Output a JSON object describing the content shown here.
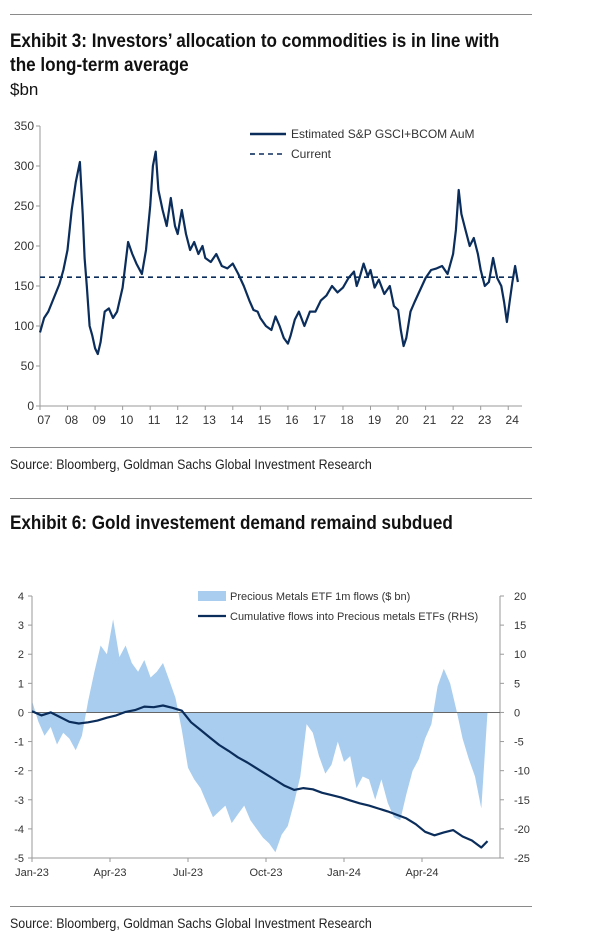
{
  "exhibit3": {
    "title": "Exhibit 3: Investors’ allocation to commodities is in line with the long-term average",
    "unit": "$bn",
    "source": "Source: Bloomberg, Goldman Sachs Global Investment Research"
  },
  "exhibit6": {
    "title": "Exhibit 6: Gold investement demand remaind subdued",
    "source": "Source: Bloomberg, Goldman Sachs Global Investment Research"
  },
  "colors": {
    "navy": "#0b2d5b",
    "lightblue": "#a9cdee",
    "axis": "#9a9a9a"
  },
  "chart_data": [
    {
      "type": "line",
      "title": "Exhibit 3: Investors’ allocation to commodities is in line with the long-term average",
      "ylabel": "$bn",
      "xlim": [
        2007,
        2024.5
      ],
      "ylim": [
        0,
        350
      ],
      "y_ticks": [
        0,
        50,
        100,
        150,
        200,
        250,
        300,
        350
      ],
      "x_tick_labels": [
        "07",
        "08",
        "09",
        "10",
        "11",
        "12",
        "13",
        "14",
        "15",
        "16",
        "17",
        "18",
        "19",
        "20",
        "21",
        "22",
        "23",
        "24"
      ],
      "legend_position": "top-right",
      "grid": false,
      "series": [
        {
          "name": "Estimated S&P GSCI+BCOM AuM",
          "style": "solid",
          "x": [
            2007.0,
            2007.15,
            2007.3,
            2007.5,
            2007.7,
            2007.85,
            2008.0,
            2008.15,
            2008.3,
            2008.45,
            2008.55,
            2008.62,
            2008.7,
            2008.8,
            2008.9,
            2009.0,
            2009.1,
            2009.2,
            2009.35,
            2009.5,
            2009.65,
            2009.8,
            2010.0,
            2010.2,
            2010.35,
            2010.5,
            2010.7,
            2010.85,
            2011.0,
            2011.1,
            2011.2,
            2011.3,
            2011.45,
            2011.6,
            2011.75,
            2011.9,
            2012.0,
            2012.15,
            2012.3,
            2012.45,
            2012.6,
            2012.75,
            2012.9,
            2013.0,
            2013.2,
            2013.4,
            2013.6,
            2013.8,
            2014.0,
            2014.2,
            2014.4,
            2014.6,
            2014.75,
            2014.9,
            2015.0,
            2015.2,
            2015.4,
            2015.55,
            2015.7,
            2015.85,
            2016.0,
            2016.1,
            2016.25,
            2016.4,
            2016.6,
            2016.8,
            2017.0,
            2017.2,
            2017.4,
            2017.6,
            2017.8,
            2018.0,
            2018.2,
            2018.4,
            2018.5,
            2018.6,
            2018.75,
            2018.9,
            2019.0,
            2019.15,
            2019.3,
            2019.5,
            2019.7,
            2019.85,
            2020.0,
            2020.1,
            2020.2,
            2020.3,
            2020.45,
            2020.6,
            2020.8,
            2021.0,
            2021.2,
            2021.4,
            2021.6,
            2021.8,
            2022.0,
            2022.1,
            2022.2,
            2022.3,
            2022.45,
            2022.6,
            2022.75,
            2022.9,
            2023.0,
            2023.15,
            2023.3,
            2023.45,
            2023.6,
            2023.75,
            2023.85,
            2023.95,
            2024.05,
            2024.15,
            2024.25,
            2024.35
          ],
          "y": [
            92,
            110,
            118,
            135,
            152,
            170,
            195,
            245,
            280,
            305,
            240,
            185,
            150,
            100,
            88,
            72,
            65,
            80,
            118,
            122,
            110,
            118,
            148,
            205,
            190,
            178,
            165,
            195,
            250,
            300,
            318,
            270,
            245,
            225,
            260,
            225,
            215,
            245,
            215,
            195,
            205,
            190,
            200,
            185,
            180,
            190,
            175,
            172,
            178,
            165,
            150,
            132,
            120,
            118,
            110,
            100,
            95,
            112,
            100,
            85,
            78,
            88,
            108,
            118,
            100,
            118,
            118,
            132,
            138,
            150,
            142,
            148,
            160,
            168,
            150,
            160,
            178,
            162,
            170,
            148,
            158,
            140,
            150,
            125,
            120,
            95,
            75,
            85,
            118,
            130,
            145,
            160,
            170,
            172,
            175,
            165,
            190,
            220,
            270,
            240,
            220,
            200,
            210,
            190,
            170,
            150,
            155,
            185,
            160,
            150,
            130,
            105,
            130,
            155,
            175,
            155
          ]
        },
        {
          "name": "Current",
          "style": "dashed",
          "value": 161
        }
      ]
    },
    {
      "type": "area",
      "title": "Exhibit 6: Gold investement demand remaind subdued",
      "x_tick_labels": [
        "Jan-23",
        "Apr-23",
        "Jul-23",
        "Oct-23",
        "Jan-24",
        "Apr-24"
      ],
      "xlim": [
        2023.0,
        2024.5
      ],
      "ylim": [
        -5,
        4
      ],
      "y_ticks": [
        -5,
        -4,
        -3,
        -2,
        -1,
        0,
        1,
        2,
        3,
        4
      ],
      "y2lim": [
        -25,
        20
      ],
      "y2_ticks": [
        -25,
        -20,
        -15,
        -10,
        -5,
        0,
        5,
        10,
        15,
        20
      ],
      "legend_position": "top-right",
      "grid": false,
      "series": [
        {
          "name": "Precious Metals ETF 1m flows ($ bn)",
          "type": "area",
          "axis": "left",
          "x": [
            2023.0,
            2023.02,
            2023.04,
            2023.06,
            2023.08,
            2023.1,
            2023.12,
            2023.14,
            2023.16,
            2023.18,
            2023.2,
            2023.22,
            2023.24,
            2023.26,
            2023.28,
            2023.3,
            2023.32,
            2023.34,
            2023.36,
            2023.38,
            2023.4,
            2023.42,
            2023.44,
            2023.46,
            2023.48,
            2023.5,
            2023.52,
            2023.54,
            2023.56,
            2023.58,
            2023.6,
            2023.62,
            2023.64,
            2023.66,
            2023.68,
            2023.7,
            2023.72,
            2023.74,
            2023.76,
            2023.78,
            2023.8,
            2023.82,
            2023.84,
            2023.86,
            2023.88,
            2023.9,
            2023.92,
            2023.94,
            2023.96,
            2023.98,
            2024.0,
            2024.02,
            2024.04,
            2024.06,
            2024.08,
            2024.1,
            2024.12,
            2024.14,
            2024.16,
            2024.18,
            2024.2,
            2024.22,
            2024.24,
            2024.26,
            2024.28,
            2024.3,
            2024.32,
            2024.34,
            2024.36,
            2024.38,
            2024.4,
            2024.42,
            2024.44,
            2024.46
          ],
          "y": [
            0.4,
            -0.3,
            -0.8,
            -0.5,
            -1.1,
            -0.7,
            -0.9,
            -1.3,
            -0.8,
            0.4,
            1.4,
            2.3,
            2.0,
            3.2,
            1.9,
            2.3,
            1.7,
            1.4,
            1.8,
            1.2,
            1.4,
            1.7,
            1.1,
            0.5,
            -0.6,
            -1.9,
            -2.3,
            -2.6,
            -3.1,
            -3.6,
            -3.4,
            -3.2,
            -3.8,
            -3.5,
            -3.2,
            -3.7,
            -4.0,
            -4.3,
            -4.5,
            -4.8,
            -4.2,
            -3.9,
            -3.1,
            -2.2,
            -0.4,
            -0.7,
            -1.5,
            -2.1,
            -1.8,
            -1.0,
            -1.7,
            -1.5,
            -2.6,
            -2.2,
            -2.3,
            -3.0,
            -2.3,
            -3.1,
            -3.6,
            -3.7,
            -2.8,
            -2.0,
            -1.6,
            -0.9,
            -0.4,
            0.9,
            1.5,
            1.0,
            0.1,
            -0.9,
            -1.6,
            -2.2,
            -3.3,
            0.0
          ]
        },
        {
          "name": "Cumulative flows into Precious metals ETFs (RHS)",
          "type": "line",
          "axis": "right",
          "x": [
            2023.0,
            2023.03,
            2023.06,
            2023.09,
            2023.12,
            2023.15,
            2023.18,
            2023.21,
            2023.24,
            2023.27,
            2023.3,
            2023.33,
            2023.36,
            2023.39,
            2023.42,
            2023.45,
            2023.48,
            2023.51,
            2023.54,
            2023.57,
            2023.6,
            2023.63,
            2023.66,
            2023.69,
            2023.72,
            2023.75,
            2023.78,
            2023.81,
            2023.84,
            2023.87,
            2023.9,
            2023.93,
            2023.96,
            2023.99,
            2024.02,
            2024.05,
            2024.08,
            2024.11,
            2024.14,
            2024.17,
            2024.2,
            2024.23,
            2024.26,
            2024.29,
            2024.32,
            2024.35,
            2024.38,
            2024.41,
            2024.44,
            2024.46
          ],
          "y": [
            0.2,
            -0.5,
            0.0,
            -0.8,
            -1.6,
            -1.9,
            -1.7,
            -1.4,
            -0.9,
            -0.5,
            0.1,
            0.4,
            1.0,
            0.9,
            1.2,
            0.8,
            0.3,
            -1.7,
            -3.0,
            -4.3,
            -5.6,
            -6.6,
            -7.7,
            -8.6,
            -9.6,
            -10.6,
            -11.6,
            -12.6,
            -13.3,
            -13.0,
            -13.2,
            -13.8,
            -14.2,
            -14.6,
            -15.1,
            -15.6,
            -16.0,
            -16.5,
            -17.0,
            -17.6,
            -18.2,
            -19.2,
            -20.5,
            -21.1,
            -20.6,
            -20.2,
            -21.3,
            -22.0,
            -23.2,
            -22.1
          ]
        }
      ]
    }
  ]
}
